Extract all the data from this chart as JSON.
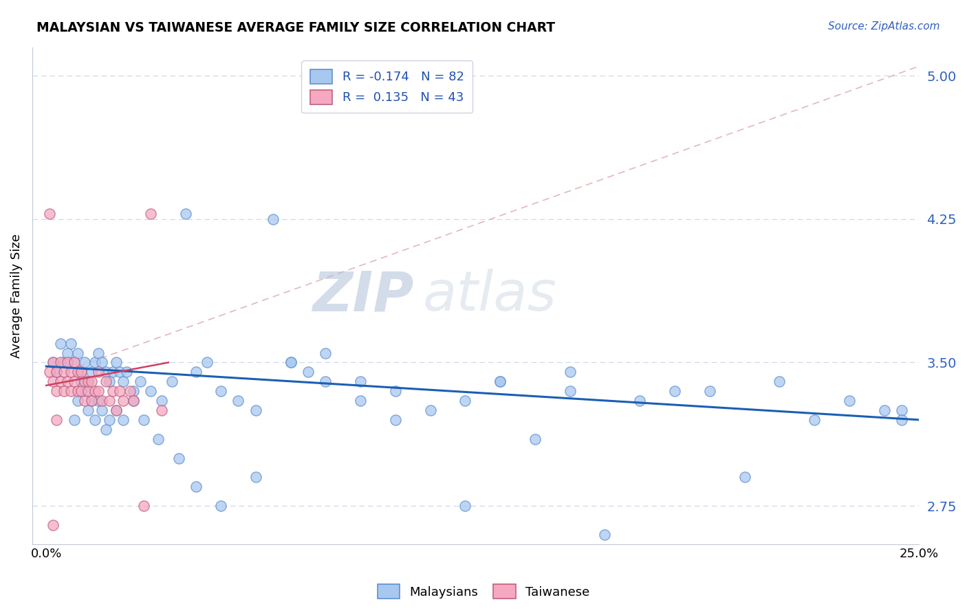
{
  "title": "MALAYSIAN VS TAIWANESE AVERAGE FAMILY SIZE CORRELATION CHART",
  "source": "Source: ZipAtlas.com",
  "ylabel": "Average Family Size",
  "xlim": [
    0.0,
    0.25
  ],
  "ylim": [
    2.55,
    5.15
  ],
  "yticks": [
    2.75,
    3.5,
    4.25,
    5.0
  ],
  "xtick_labels": [
    "0.0%",
    "25.0%"
  ],
  "legend_r_malaysian": "-0.174",
  "legend_n_malaysian": "82",
  "legend_r_taiwanese": "0.135",
  "legend_n_taiwanese": "43",
  "malaysian_color": "#a8c8f0",
  "taiwanese_color": "#f5a8c0",
  "trend_malaysian_color": "#1a5fb4",
  "trend_taiwanese_color": "#d04060",
  "ref_line_color": "#e0b0b0",
  "grid_color": "#d0d8e8",
  "malaysian_x": [
    0.002,
    0.003,
    0.004,
    0.005,
    0.006,
    0.007,
    0.008,
    0.009,
    0.01,
    0.011,
    0.012,
    0.013,
    0.014,
    0.015,
    0.016,
    0.017,
    0.018,
    0.019,
    0.02,
    0.021,
    0.022,
    0.023,
    0.025,
    0.027,
    0.03,
    0.033,
    0.036,
    0.04,
    0.043,
    0.046,
    0.05,
    0.055,
    0.06,
    0.065,
    0.07,
    0.075,
    0.08,
    0.09,
    0.1,
    0.11,
    0.12,
    0.13,
    0.15,
    0.17,
    0.19,
    0.21,
    0.23,
    0.245,
    0.008,
    0.009,
    0.01,
    0.011,
    0.012,
    0.013,
    0.014,
    0.015,
    0.016,
    0.017,
    0.018,
    0.02,
    0.022,
    0.025,
    0.028,
    0.032,
    0.038,
    0.043,
    0.05,
    0.06,
    0.07,
    0.08,
    0.09,
    0.1,
    0.12,
    0.14,
    0.16,
    0.18,
    0.2,
    0.22,
    0.24,
    0.245,
    0.13,
    0.15
  ],
  "malaysian_y": [
    3.5,
    3.45,
    3.6,
    3.5,
    3.55,
    3.6,
    3.5,
    3.55,
    3.45,
    3.5,
    3.4,
    3.45,
    3.5,
    3.55,
    3.5,
    3.45,
    3.4,
    3.45,
    3.5,
    3.45,
    3.4,
    3.45,
    3.35,
    3.4,
    3.35,
    3.3,
    3.4,
    4.28,
    3.45,
    3.5,
    3.35,
    3.3,
    3.25,
    4.25,
    3.5,
    3.45,
    3.55,
    3.4,
    3.35,
    3.25,
    3.3,
    3.4,
    3.45,
    3.3,
    3.35,
    3.4,
    3.3,
    3.25,
    3.2,
    3.3,
    3.4,
    3.35,
    3.25,
    3.3,
    3.2,
    3.3,
    3.25,
    3.15,
    3.2,
    3.25,
    3.2,
    3.3,
    3.2,
    3.1,
    3.0,
    2.85,
    2.75,
    2.9,
    3.5,
    3.4,
    3.3,
    3.2,
    2.75,
    3.1,
    2.6,
    3.35,
    2.9,
    3.2,
    3.25,
    3.2,
    3.4,
    3.35
  ],
  "taiwanese_x": [
    0.001,
    0.002,
    0.002,
    0.003,
    0.003,
    0.004,
    0.004,
    0.005,
    0.005,
    0.006,
    0.006,
    0.007,
    0.007,
    0.008,
    0.008,
    0.009,
    0.009,
    0.01,
    0.01,
    0.011,
    0.011,
    0.012,
    0.012,
    0.013,
    0.013,
    0.014,
    0.015,
    0.015,
    0.016,
    0.017,
    0.018,
    0.019,
    0.02,
    0.021,
    0.022,
    0.024,
    0.025,
    0.028,
    0.03,
    0.033,
    0.001,
    0.002,
    0.003
  ],
  "taiwanese_y": [
    3.45,
    3.4,
    3.5,
    3.35,
    3.45,
    3.4,
    3.5,
    3.35,
    3.45,
    3.4,
    3.5,
    3.35,
    3.45,
    3.4,
    3.5,
    3.35,
    3.45,
    3.35,
    3.45,
    3.3,
    3.4,
    3.35,
    3.4,
    3.3,
    3.4,
    3.35,
    3.35,
    3.45,
    3.3,
    3.4,
    3.3,
    3.35,
    3.25,
    3.35,
    3.3,
    3.35,
    3.3,
    2.75,
    4.28,
    3.25,
    4.28,
    2.65,
    3.2
  ]
}
